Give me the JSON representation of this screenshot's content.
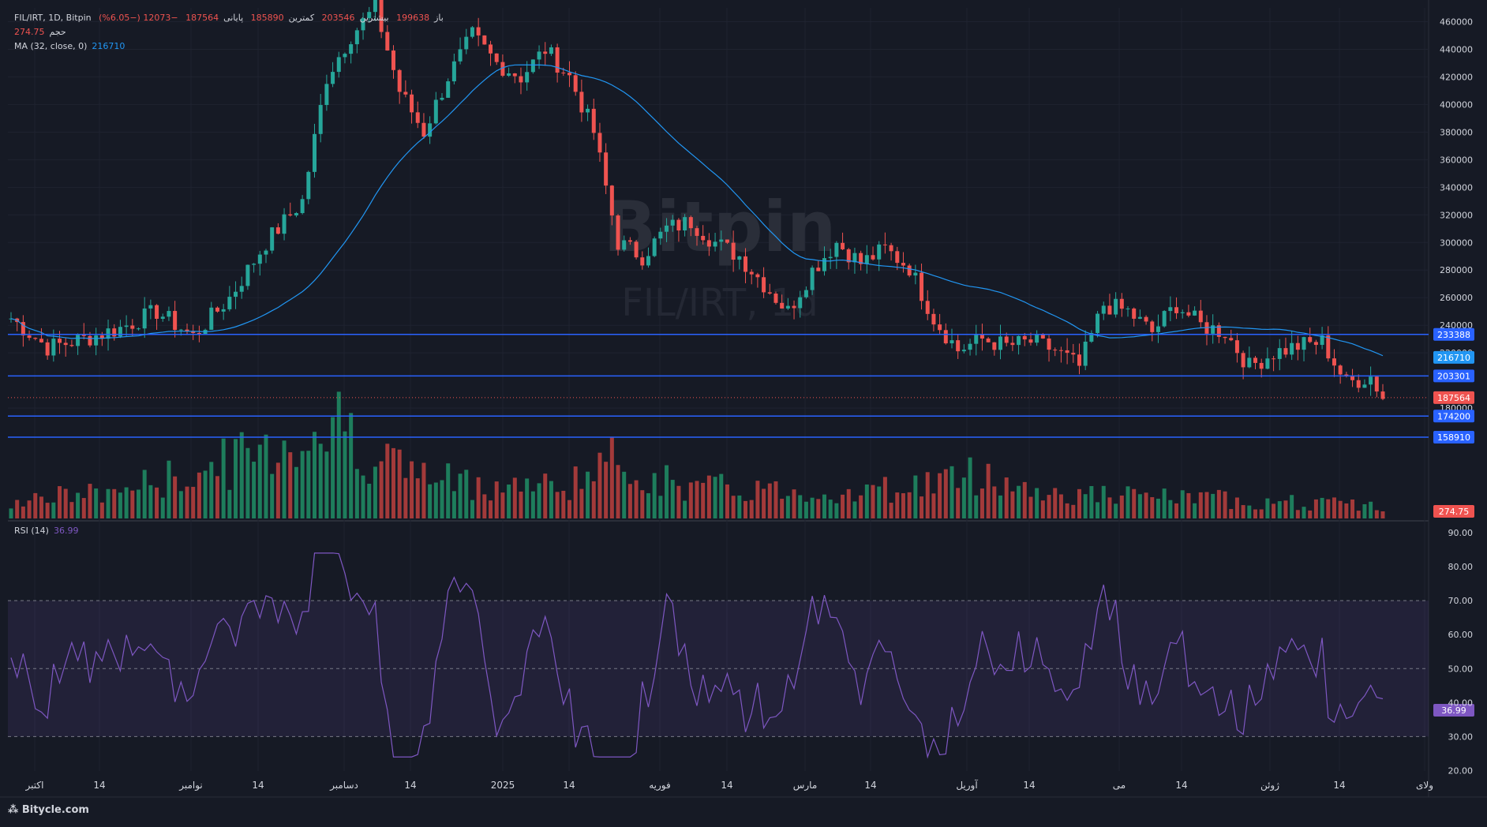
{
  "watermark": {
    "line1": "Bitpin",
    "line2": "FIL/IRT, 1d"
  },
  "legend": {
    "symbol": "FIL/IRT, 1D, Bitpin",
    "open_label": "باز",
    "open": "199638",
    "high_label": "بیشترین",
    "high": "203546",
    "low_label": "کمترین",
    "low": "185890",
    "close_label": "پایانی",
    "close": "187564",
    "change": "−12073 (−6.05%)",
    "volume_label": "حجم",
    "volume": "274.75",
    "ma_label": "MA (32, close, 0)",
    "ma": "216710",
    "rsi_label": "RSI (14)",
    "rsi": "36.99"
  },
  "brand": {
    "name": "Bitycle.com"
  },
  "colors": {
    "background": "#161a25",
    "up": "#26a69a",
    "down": "#ef5350",
    "vol_up": "#1e7d5c",
    "vol_down": "#a33a3a",
    "ma": "#2196f3",
    "rsi": "#7e57c2",
    "hline": "#2962ff",
    "text": "#d1d4dc"
  },
  "chart_data": {
    "type": "candlestick",
    "price_axis": {
      "min": 190000,
      "max": 460000,
      "ticks": [
        "460000",
        "440000",
        "420000",
        "400000",
        "380000",
        "360000",
        "340000",
        "320000",
        "300000",
        "280000",
        "260000",
        "240000",
        "220000",
        "180000"
      ]
    },
    "rsi_axis": {
      "min": 20,
      "max": 90,
      "ticks": [
        "90.00",
        "80.00",
        "70.00",
        "60.00",
        "50.00",
        "40.00",
        "30.00",
        "20.00"
      ],
      "band": [
        30,
        70
      ],
      "mid": 50
    },
    "x_ticks": [
      "اکتبر",
      "14",
      "نوامبر",
      "14",
      "دسامبر",
      "14",
      "2025",
      "14",
      "فوریه",
      "14",
      "مارس",
      "14",
      "آوریل",
      "14",
      "می",
      "14",
      "ژوئن",
      "14",
      "ولای"
    ],
    "horizontal_levels": [
      {
        "value": 233388,
        "label": "233388"
      },
      {
        "value": 203301,
        "label": "203301"
      },
      {
        "value": 174200,
        "label": "174200"
      },
      {
        "value": 158910,
        "label": "158910"
      }
    ],
    "price_labels": [
      {
        "value": 216710,
        "label": "216710",
        "kind": "ma"
      },
      {
        "value": 187564,
        "label": "187564",
        "kind": "last"
      },
      {
        "label": "274.75",
        "kind": "volume"
      },
      {
        "label": "36.99",
        "kind": "rsi"
      }
    ],
    "close_anchors": [
      [
        0,
        245000
      ],
      [
        6,
        224000
      ],
      [
        12,
        230000
      ],
      [
        18,
        238000
      ],
      [
        24,
        250000
      ],
      [
        30,
        232000
      ],
      [
        36,
        260000
      ],
      [
        42,
        300000
      ],
      [
        48,
        330000
      ],
      [
        52,
        420000
      ],
      [
        56,
        450000
      ],
      [
        60,
        470000
      ],
      [
        64,
        410000
      ],
      [
        68,
        380000
      ],
      [
        72,
        420000
      ],
      [
        76,
        450000
      ],
      [
        80,
        430000
      ],
      [
        84,
        420000
      ],
      [
        88,
        440000
      ],
      [
        92,
        420000
      ],
      [
        96,
        380000
      ],
      [
        100,
        300000
      ],
      [
        104,
        290000
      ],
      [
        108,
        310000
      ],
      [
        112,
        315000
      ],
      [
        116,
        300000
      ],
      [
        120,
        290000
      ],
      [
        124,
        270000
      ],
      [
        128,
        250000
      ],
      [
        132,
        280000
      ],
      [
        136,
        300000
      ],
      [
        140,
        285000
      ],
      [
        144,
        295000
      ],
      [
        148,
        282000
      ],
      [
        152,
        245000
      ],
      [
        156,
        222000
      ],
      [
        160,
        230000
      ],
      [
        164,
        225000
      ],
      [
        168,
        228000
      ],
      [
        172,
        222000
      ],
      [
        176,
        210000
      ],
      [
        180,
        255000
      ],
      [
        184,
        250000
      ],
      [
        188,
        235000
      ],
      [
        192,
        255000
      ],
      [
        196,
        240000
      ],
      [
        200,
        235000
      ],
      [
        204,
        210000
      ],
      [
        208,
        220000
      ],
      [
        212,
        225000
      ],
      [
        216,
        228000
      ],
      [
        220,
        198000
      ],
      [
        224,
        203000
      ],
      [
        226,
        188000
      ]
    ],
    "volume_anchors": [
      [
        0,
        0.15
      ],
      [
        15,
        0.2
      ],
      [
        30,
        0.35
      ],
      [
        45,
        0.6
      ],
      [
        55,
        0.75
      ],
      [
        60,
        0.5
      ],
      [
        70,
        0.3
      ],
      [
        90,
        0.25
      ],
      [
        100,
        0.45
      ],
      [
        110,
        0.25
      ],
      [
        140,
        0.2
      ],
      [
        160,
        0.35
      ],
      [
        170,
        0.2
      ],
      [
        200,
        0.15
      ],
      [
        225,
        0.1
      ]
    ]
  }
}
